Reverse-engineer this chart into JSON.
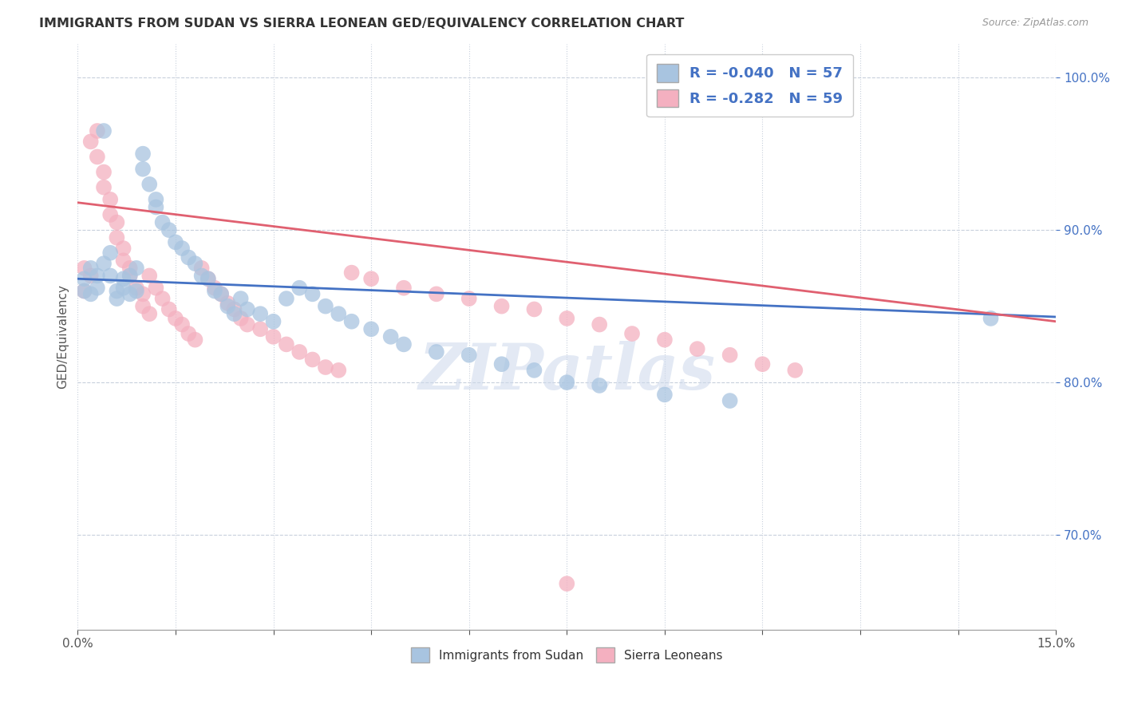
{
  "title": "IMMIGRANTS FROM SUDAN VS SIERRA LEONEAN GED/EQUIVALENCY CORRELATION CHART",
  "source": "Source: ZipAtlas.com",
  "ylabel": "GED/Equivalency",
  "yticks": [
    70.0,
    80.0,
    90.0,
    100.0
  ],
  "ytick_labels": [
    "70.0%",
    "80.0%",
    "90.0%",
    "100.0%"
  ],
  "xlim": [
    0.0,
    0.15
  ],
  "ylim": [
    0.638,
    1.022
  ],
  "legend_r_blue": "R = -0.040",
  "legend_n_blue": "N = 57",
  "legend_r_pink": "R = -0.282",
  "legend_n_pink": "N = 59",
  "blue_color": "#a8c4e0",
  "pink_color": "#f4b0c0",
  "blue_line_color": "#4472c4",
  "pink_line_color": "#e06070",
  "watermark": "ZIPatlas",
  "blue_trend_x": [
    0.0,
    0.15
  ],
  "blue_trend_y": [
    0.868,
    0.843
  ],
  "pink_trend_x": [
    0.0,
    0.15
  ],
  "pink_trend_y": [
    0.918,
    0.84
  ],
  "blue_scatter_x": [
    0.001,
    0.001,
    0.002,
    0.002,
    0.003,
    0.003,
    0.004,
    0.004,
    0.005,
    0.005,
    0.006,
    0.006,
    0.007,
    0.007,
    0.008,
    0.008,
    0.009,
    0.009,
    0.01,
    0.01,
    0.011,
    0.012,
    0.012,
    0.013,
    0.014,
    0.015,
    0.016,
    0.017,
    0.018,
    0.019,
    0.02,
    0.021,
    0.022,
    0.023,
    0.024,
    0.025,
    0.026,
    0.028,
    0.03,
    0.032,
    0.034,
    0.036,
    0.038,
    0.04,
    0.042,
    0.045,
    0.048,
    0.05,
    0.055,
    0.06,
    0.065,
    0.07,
    0.075,
    0.08,
    0.09,
    0.1,
    0.14
  ],
  "blue_scatter_y": [
    0.868,
    0.86,
    0.875,
    0.858,
    0.87,
    0.862,
    0.965,
    0.878,
    0.885,
    0.87,
    0.86,
    0.855,
    0.862,
    0.868,
    0.87,
    0.858,
    0.875,
    0.86,
    0.95,
    0.94,
    0.93,
    0.92,
    0.915,
    0.905,
    0.9,
    0.892,
    0.888,
    0.882,
    0.878,
    0.87,
    0.868,
    0.86,
    0.858,
    0.85,
    0.845,
    0.855,
    0.848,
    0.845,
    0.84,
    0.855,
    0.862,
    0.858,
    0.85,
    0.845,
    0.84,
    0.835,
    0.83,
    0.825,
    0.82,
    0.818,
    0.812,
    0.808,
    0.8,
    0.798,
    0.792,
    0.788,
    0.842
  ],
  "pink_scatter_x": [
    0.001,
    0.001,
    0.002,
    0.002,
    0.003,
    0.003,
    0.004,
    0.004,
    0.005,
    0.005,
    0.006,
    0.006,
    0.007,
    0.007,
    0.008,
    0.008,
    0.009,
    0.01,
    0.01,
    0.011,
    0.011,
    0.012,
    0.013,
    0.014,
    0.015,
    0.016,
    0.017,
    0.018,
    0.019,
    0.02,
    0.021,
    0.022,
    0.023,
    0.024,
    0.025,
    0.026,
    0.028,
    0.03,
    0.032,
    0.034,
    0.036,
    0.038,
    0.04,
    0.042,
    0.045,
    0.05,
    0.055,
    0.06,
    0.065,
    0.07,
    0.075,
    0.08,
    0.085,
    0.09,
    0.095,
    0.1,
    0.105,
    0.11,
    0.075
  ],
  "pink_scatter_y": [
    0.875,
    0.86,
    0.958,
    0.87,
    0.965,
    0.948,
    0.938,
    0.928,
    0.92,
    0.91,
    0.905,
    0.895,
    0.888,
    0.88,
    0.875,
    0.87,
    0.862,
    0.858,
    0.85,
    0.845,
    0.87,
    0.862,
    0.855,
    0.848,
    0.842,
    0.838,
    0.832,
    0.828,
    0.875,
    0.868,
    0.862,
    0.858,
    0.852,
    0.848,
    0.842,
    0.838,
    0.835,
    0.83,
    0.825,
    0.82,
    0.815,
    0.81,
    0.808,
    0.872,
    0.868,
    0.862,
    0.858,
    0.855,
    0.85,
    0.848,
    0.842,
    0.838,
    0.832,
    0.828,
    0.822,
    0.818,
    0.812,
    0.808,
    0.668
  ]
}
